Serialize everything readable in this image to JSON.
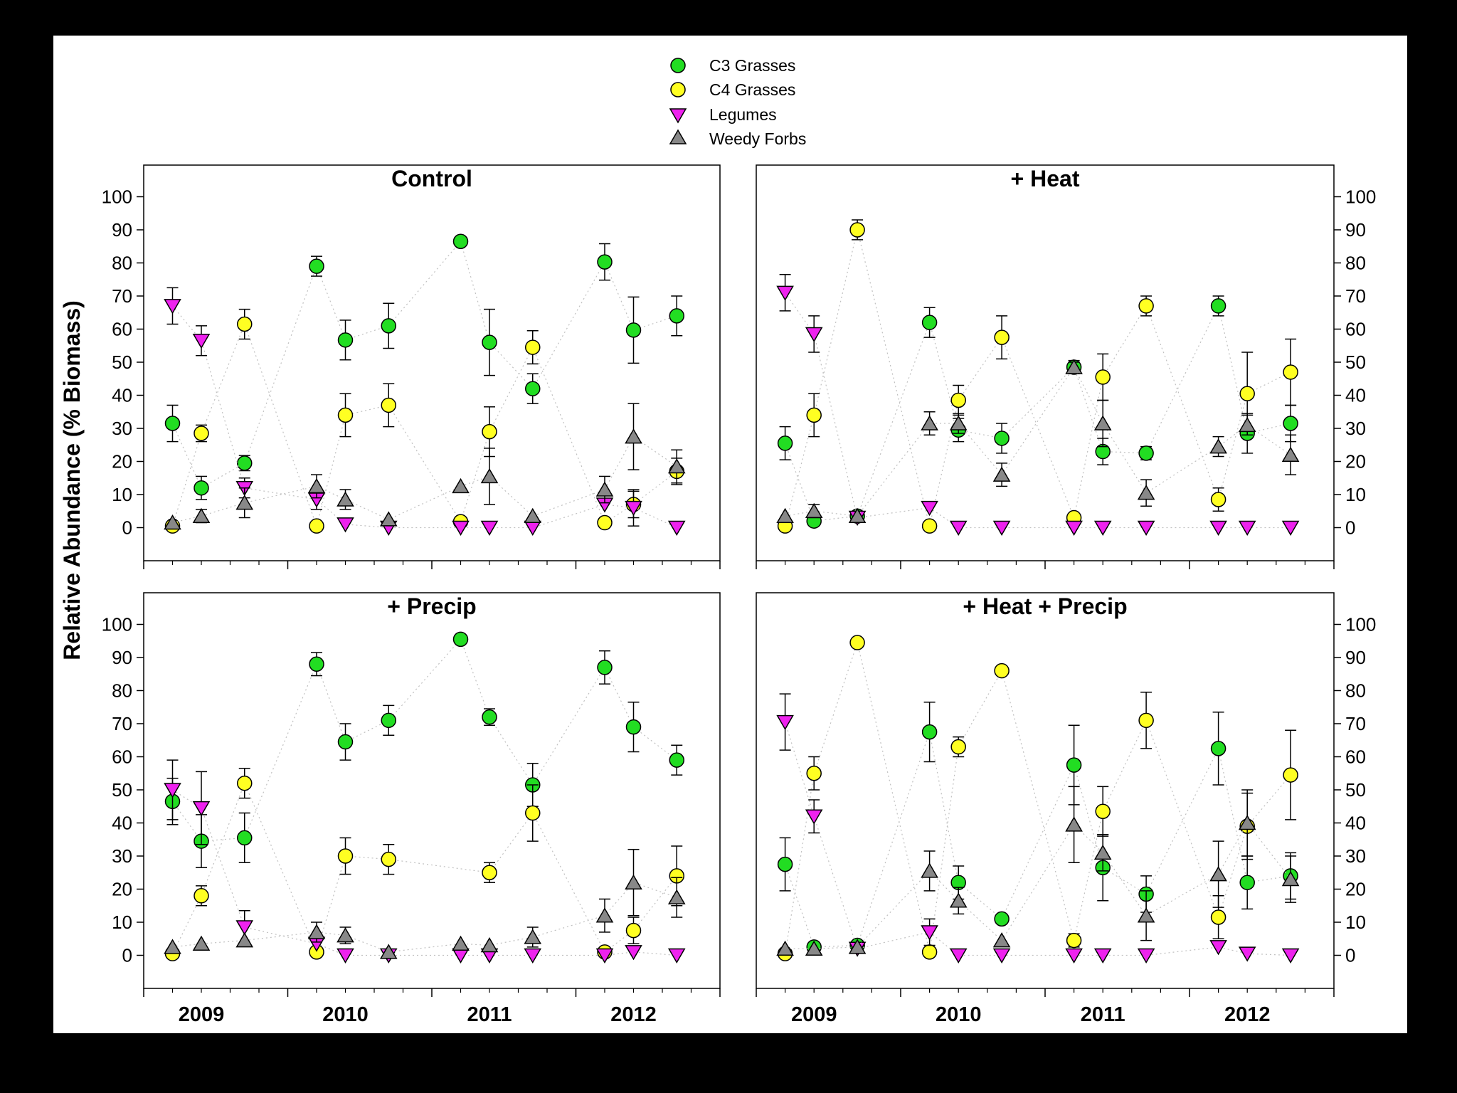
{
  "legend": [
    {
      "name": "C3 Grasses",
      "marker": "circle",
      "color": "#22dd22"
    },
    {
      "name": "C4 Grasses",
      "marker": "circle",
      "color": "#ffff22"
    },
    {
      "name": "Legumes",
      "marker": "triangle-down",
      "color": "#ee22ee"
    },
    {
      "name": "Weedy Forbs",
      "marker": "triangle-up",
      "color": "#888888"
    }
  ],
  "ylabel": "Relative Abundance (% Biomass)",
  "chart_data": {
    "type": "scatter",
    "ylabel": "Relative Abundance (% Biomass)",
    "ylim": [
      -10,
      100
    ],
    "yticks": [
      0,
      10,
      20,
      30,
      40,
      50,
      60,
      70,
      80,
      90,
      100
    ],
    "xticklabels": [
      "2009",
      "2010",
      "2011",
      "2012"
    ],
    "x_sampling_positions": [
      0.2,
      0.4,
      0.7,
      1.2,
      1.4,
      1.7,
      2.2,
      2.4,
      2.7,
      3.2,
      3.4,
      3.7
    ],
    "connecting_lines": "dotted",
    "error_bars": true,
    "panels": [
      {
        "title": "Control",
        "series": [
          {
            "name": "C3 Grasses",
            "values": [
              31.5,
              12,
              19.5,
              79,
              56.7,
              61,
              86.5,
              56,
              42,
              80.3,
              59.7,
              64
            ],
            "errors": [
              5.5,
              3.5,
              2.3,
              3,
              6,
              6.8,
              0,
              10,
              4.5,
              5.5,
              10,
              6
            ]
          },
          {
            "name": "C4 Grasses",
            "values": [
              0.5,
              28.5,
              61.5,
              0.5,
              34,
              37,
              1.8,
              29,
              54.5,
              1.5,
              7,
              17
            ],
            "errors": [
              0,
              2.5,
              4.5,
              0,
              6.5,
              6.5,
              0,
              7.5,
              5,
              0,
              4,
              4
            ]
          },
          {
            "name": "Legumes",
            "values": [
              67,
              56.5,
              12,
              8.5,
              1,
              0,
              0,
              0,
              0,
              7,
              6,
              0
            ],
            "errors": [
              5.5,
              4.5,
              3,
              3,
              0,
              0,
              0,
              0,
              0,
              0,
              5.5,
              0
            ]
          },
          {
            "name": "Weedy Forbs",
            "values": [
              1.5,
              3.5,
              7.5,
              12.5,
              8.5,
              2.5,
              12.5,
              15.5,
              3.5,
              11.5,
              27.5,
              18.5
            ],
            "errors": [
              0,
              2,
              4.5,
              3.5,
              3,
              0,
              0,
              8.5,
              0,
              4,
              10,
              5
            ]
          }
        ]
      },
      {
        "title": "+ Heat",
        "series": [
          {
            "name": "C3 Grasses",
            "values": [
              25.5,
              2,
              3.5,
              62,
              29.5,
              27,
              48.5,
              23,
              22.5,
              67,
              28.5,
              31.5
            ],
            "errors": [
              5,
              0,
              0,
              4.5,
              3.5,
              4.5,
              2,
              4,
              2,
              3,
              6,
              5.5
            ]
          },
          {
            "name": "C4 Grasses",
            "values": [
              0.5,
              34,
              90,
              0.5,
              38.5,
              57.5,
              3,
              45.5,
              67,
              8.5,
              40.5,
              47
            ],
            "errors": [
              0,
              6.5,
              3,
              0,
              4.5,
              6.5,
              0,
              7,
              3,
              3.5,
              12.5,
              10
            ]
          },
          {
            "name": "Legumes",
            "values": [
              71,
              58.5,
              3,
              6,
              0,
              0,
              0,
              0,
              0,
              0,
              0,
              0
            ],
            "errors": [
              5.5,
              5.5,
              0,
              0,
              0,
              0,
              0,
              0,
              0,
              0,
              0,
              0
            ]
          },
          {
            "name": "Weedy Forbs",
            "values": [
              3.5,
              5,
              3.5,
              31.5,
              31.5,
              16,
              48.5,
              31.5,
              10.5,
              24.5,
              31,
              22
            ],
            "errors": [
              0,
              2,
              1.5,
              3.5,
              3,
              3.5,
              1.5,
              7,
              4,
              3,
              3,
              6
            ]
          }
        ]
      },
      {
        "title": "+ Precip",
        "series": [
          {
            "name": "C3 Grasses",
            "values": [
              46.5,
              34.5,
              35.5,
              88,
              64.5,
              71,
              95.5,
              72,
              51.5,
              87,
              69,
              59
            ],
            "errors": [
              7,
              8,
              7.5,
              3.5,
              5.5,
              4.5,
              0,
              2.5,
              6.5,
              5,
              7.5,
              4.5
            ]
          },
          {
            "name": "C4 Grasses",
            "values": [
              0.5,
              18,
              52,
              1,
              30,
              29,
              25,
              43,
              1,
              7.5,
              24
            ],
            "x_index": [
              0,
              1,
              2,
              3,
              4,
              5,
              7,
              8,
              9,
              10,
              11
            ],
            "errors": [
              0,
              3,
              4.5,
              0,
              5.5,
              4.5,
              3,
              8.5,
              0,
              4,
              9
            ]
          },
          {
            "name": "Legumes",
            "values": [
              50,
              44.5,
              8.5,
              3.5,
              0,
              0,
              0,
              0,
              0,
              0,
              1,
              0
            ],
            "errors": [
              9,
              11,
              5,
              0,
              0,
              0,
              0,
              0,
              0,
              0,
              0,
              0
            ]
          },
          {
            "name": "Weedy Forbs",
            "values": [
              2.5,
              3.5,
              4.5,
              7,
              6,
              1,
              3.5,
              3,
              5.5,
              12,
              22,
              17.5
            ],
            "errors": [
              0,
              0,
              0,
              3,
              2.5,
              0,
              0,
              0,
              3,
              5,
              10,
              6
            ]
          }
        ]
      },
      {
        "title": "+ Heat + Precip",
        "series": [
          {
            "name": "C3 Grasses",
            "values": [
              27.5,
              2.5,
              3,
              67.5,
              22,
              11,
              57.5,
              26.5,
              18.5,
              62.5,
              22,
              24
            ],
            "errors": [
              8,
              0,
              0,
              9,
              5,
              0,
              12,
              10,
              5.5,
              11,
              8,
              7
            ]
          },
          {
            "name": "C4 Grasses",
            "values": [
              0.5,
              55,
              94.5,
              1,
              63,
              86,
              4.5,
              43.5,
              71,
              11.5,
              39,
              54.5
            ],
            "errors": [
              0,
              5,
              0,
              0,
              3,
              0,
              2,
              7.5,
              8.5,
              6.5,
              10,
              13.5
            ]
          },
          {
            "name": "Legumes",
            "values": [
              70.5,
              42,
              2,
              7,
              0,
              0,
              0,
              0,
              0,
              2.5,
              0.5,
              0
            ],
            "errors": [
              8.5,
              5,
              0,
              4,
              0,
              0,
              0,
              0,
              0,
              0,
              0,
              0
            ]
          },
          {
            "name": "Weedy Forbs",
            "values": [
              2,
              2,
              2.5,
              25.5,
              16.5,
              4.5,
              39.5,
              31,
              12,
              24.5,
              40,
              23
            ],
            "errors": [
              0,
              0,
              0,
              6,
              4,
              0,
              11.5,
              5.5,
              7.5,
              10,
              10,
              7
            ]
          }
        ]
      }
    ]
  }
}
